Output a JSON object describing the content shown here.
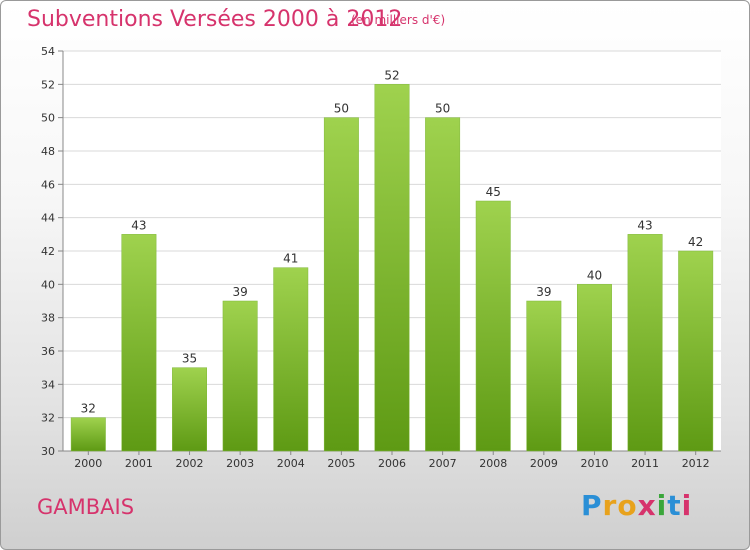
{
  "header": {
    "title": "Subventions Versées 2000 à 2012",
    "subtitle": "(en milliers d'€)"
  },
  "footer": {
    "location": "GAMBAIS",
    "logo_letters": [
      "P",
      "r",
      "o",
      "x",
      "i",
      "t",
      "i"
    ]
  },
  "colors": {
    "accent": "#d6336c",
    "bar_top": "#9fd24e",
    "bar_bottom": "#5e9a14"
  },
  "chart_data": {
    "type": "bar",
    "title": "Subventions Versées 2000 à 2012",
    "subtitle": "(en milliers d'€)",
    "xlabel": "",
    "ylabel": "",
    "categories": [
      "2000",
      "2001",
      "2002",
      "2003",
      "2004",
      "2005",
      "2006",
      "2007",
      "2008",
      "2009",
      "2010",
      "2011",
      "2012"
    ],
    "values": [
      32,
      43,
      35,
      39,
      41,
      50,
      52,
      50,
      45,
      39,
      40,
      43,
      42
    ],
    "ylim": [
      30,
      54
    ],
    "yticks": [
      30,
      32,
      34,
      36,
      38,
      40,
      42,
      44,
      46,
      48,
      50,
      52,
      54
    ],
    "grid": true,
    "legend": "none",
    "data_labels": true
  }
}
